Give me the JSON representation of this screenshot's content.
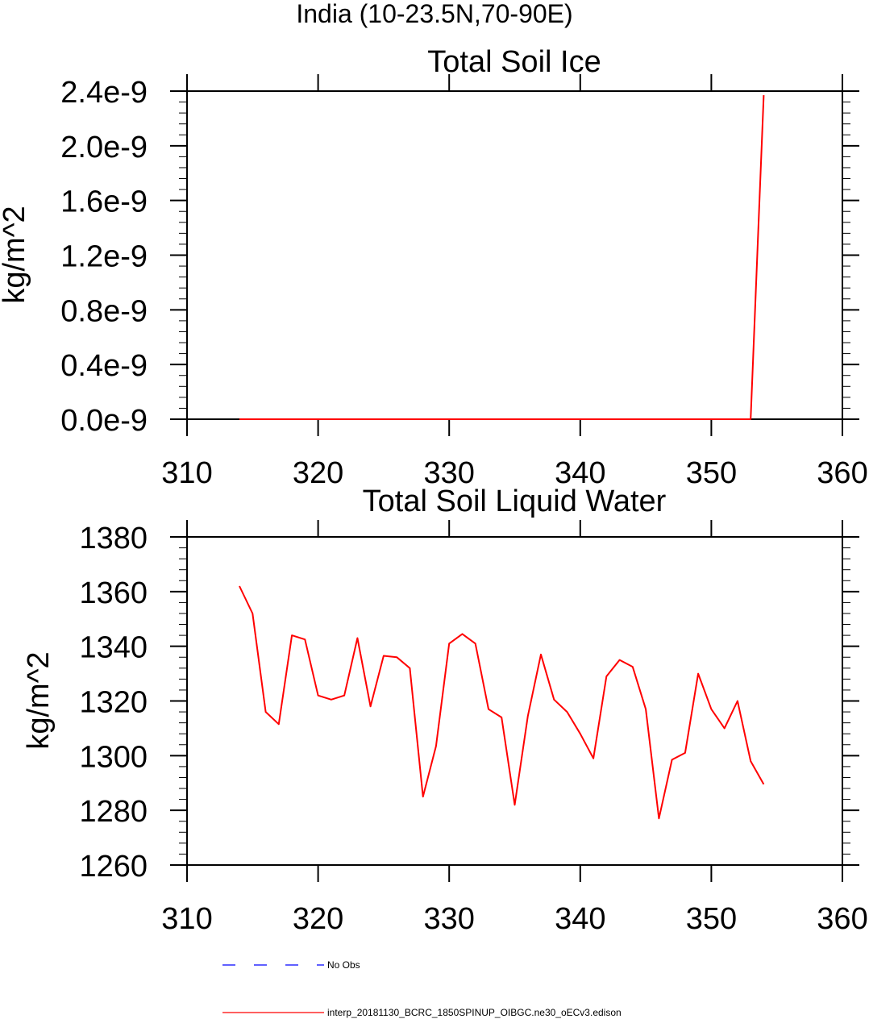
{
  "figure_title": "India (10-23.5N,70-90E)",
  "chart_data": [
    {
      "type": "line",
      "title": "Total Soil Ice",
      "xlabel": "",
      "ylabel": "kg/m^2",
      "xlim": [
        310,
        360
      ],
      "ylim": [
        0,
        2.4e-09
      ],
      "xticks": [
        310,
        320,
        330,
        340,
        350,
        360
      ],
      "xtick_labels": [
        "310",
        "320",
        "330",
        "340",
        "350",
        "360"
      ],
      "yticks": [
        0,
        4e-10,
        8e-10,
        1.2e-09,
        1.6e-09,
        2e-09,
        2.4e-09
      ],
      "ytick_labels": [
        "0.0e-9",
        "0.4e-9",
        "0.8e-9",
        "1.2e-9",
        "1.6e-9",
        "2.0e-9",
        "2.4e-9"
      ],
      "y_minor_step": 8e-11,
      "series": [
        {
          "color": "#ff0000",
          "x": [
            314,
            315,
            316,
            317,
            318,
            319,
            320,
            321,
            322,
            323,
            324,
            325,
            326,
            327,
            328,
            329,
            330,
            331,
            332,
            333,
            334,
            335,
            336,
            337,
            338,
            339,
            340,
            341,
            342,
            343,
            344,
            345,
            346,
            347,
            348,
            349,
            350,
            351,
            352,
            353,
            354
          ],
          "values": [
            0,
            0,
            0,
            0,
            0,
            0,
            0,
            0,
            0,
            0,
            0,
            0,
            0,
            0,
            0,
            0,
            0,
            0,
            0,
            0,
            0,
            0,
            0,
            0,
            0,
            0,
            0,
            0,
            0,
            0,
            0,
            0,
            0,
            0,
            0,
            0,
            0,
            0,
            0,
            0,
            2.37e-09
          ]
        }
      ]
    },
    {
      "type": "line",
      "title": "Total Soil Liquid Water",
      "xlabel": "",
      "ylabel": "kg/m^2",
      "xlim": [
        310,
        360
      ],
      "ylim": [
        1260,
        1380
      ],
      "xticks": [
        310,
        320,
        330,
        340,
        350,
        360
      ],
      "xtick_labels": [
        "310",
        "320",
        "330",
        "340",
        "350",
        "360"
      ],
      "yticks": [
        1260,
        1280,
        1300,
        1320,
        1340,
        1360,
        1380
      ],
      "ytick_labels": [
        "1260",
        "1280",
        "1300",
        "1320",
        "1340",
        "1360",
        "1380"
      ],
      "y_minor_step": 4,
      "series": [
        {
          "color": "#ff0000",
          "x": [
            314,
            315,
            316,
            317,
            318,
            319,
            320,
            321,
            322,
            323,
            324,
            325,
            326,
            327,
            328,
            329,
            330,
            331,
            332,
            333,
            334,
            335,
            336,
            337,
            338,
            339,
            340,
            341,
            342,
            343,
            344,
            345,
            346,
            347,
            348,
            349,
            350,
            351,
            352,
            353,
            354
          ],
          "values": [
            1362,
            1352,
            1316,
            1311.5,
            1344,
            1342.5,
            1322,
            1320.5,
            1322,
            1343,
            1318,
            1336.5,
            1336,
            1332,
            1285,
            1303.5,
            1341,
            1344.5,
            1341,
            1317,
            1314,
            1282,
            1314.5,
            1337,
            1320.5,
            1316,
            1308,
            1299,
            1329,
            1335,
            1332.5,
            1317,
            1277,
            1298.5,
            1301,
            1330,
            1317,
            1310,
            1320,
            1298,
            1289.5
          ]
        }
      ]
    }
  ],
  "legend": {
    "placement": "bottom-center",
    "items": [
      {
        "label": "No Obs",
        "color": "#0000ff",
        "style": "dashed"
      },
      {
        "label": "interp_20181130_BCRC_1850SPINUP_OIBGC.ne30_oECv3.edison",
        "color": "#ff0000",
        "style": "solid"
      }
    ]
  }
}
